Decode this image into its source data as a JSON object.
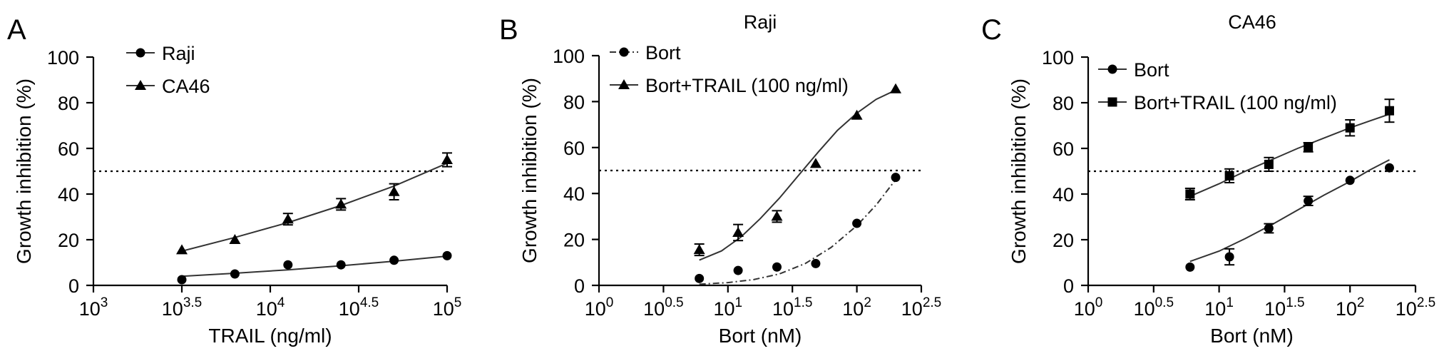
{
  "chart_data": [
    {
      "type": "scatter",
      "panel_label": "A",
      "title": "",
      "xlabel": "TRAIL (ng/ml)",
      "ylabel": "Growth inhibition (%)",
      "x_scale": "log10",
      "xlim_log10": [
        3,
        5
      ],
      "ylim": [
        0,
        100
      ],
      "x_tick_exponents": [
        "3",
        "3.5",
        "4",
        "4.5",
        "5"
      ],
      "x_tick_base": "10",
      "y_ticks": [
        "0",
        "20",
        "40",
        "60",
        "80",
        "100"
      ],
      "reference_line": 50,
      "legend_position": "top-left",
      "series": [
        {
          "name": "Raji",
          "marker": "circle",
          "line_style": "solid",
          "points": [
            {
              "x_log10": 3.5,
              "y": 2.5,
              "err": 0
            },
            {
              "x_log10": 3.8,
              "y": 5,
              "err": 0
            },
            {
              "x_log10": 4.1,
              "y": 9,
              "err": 0
            },
            {
              "x_log10": 4.4,
              "y": 9,
              "err": 0
            },
            {
              "x_log10": 4.7,
              "y": 11,
              "err": 0
            },
            {
              "x_log10": 5.0,
              "y": 13,
              "err": 0
            }
          ],
          "fit": [
            [
              3.5,
              4
            ],
            [
              3.8,
              5.3
            ],
            [
              4.1,
              6.8
            ],
            [
              4.4,
              8.6
            ],
            [
              4.7,
              10.6
            ],
            [
              5.0,
              12.8
            ]
          ]
        },
        {
          "name": "CA46",
          "marker": "triangle",
          "line_style": "solid",
          "points": [
            {
              "x_log10": 3.5,
              "y": 15.5,
              "err": 0
            },
            {
              "x_log10": 3.8,
              "y": 20,
              "err": 0
            },
            {
              "x_log10": 4.1,
              "y": 29,
              "err": 2.5
            },
            {
              "x_log10": 4.4,
              "y": 35.5,
              "err": 2.5
            },
            {
              "x_log10": 4.7,
              "y": 41,
              "err": 3.5
            },
            {
              "x_log10": 5.0,
              "y": 55,
              "err": 3
            }
          ],
          "fit": [
            [
              3.5,
              15
            ],
            [
              3.8,
              21
            ],
            [
              4.1,
              27.5
            ],
            [
              4.4,
              35
            ],
            [
              4.7,
              43.5
            ],
            [
              5.0,
              53.5
            ]
          ]
        }
      ]
    },
    {
      "type": "scatter",
      "panel_label": "B",
      "title": "Raji",
      "xlabel": "Bort (nM)",
      "ylabel": "Growth inhibition (%)",
      "x_scale": "log10",
      "xlim_log10": [
        0,
        2.5
      ],
      "ylim": [
        0,
        100
      ],
      "x_tick_exponents": [
        "0",
        "0.5",
        "1",
        "1.5",
        "2",
        "2.5"
      ],
      "x_tick_base": "10",
      "y_ticks": [
        "0",
        "20",
        "40",
        "60",
        "80",
        "100"
      ],
      "reference_line": 50,
      "legend_position": "top-left",
      "series": [
        {
          "name": "Bort",
          "marker": "circle",
          "line_style": "dash-dot",
          "points": [
            {
              "x_log10": 0.778,
              "y": 3,
              "err": 0
            },
            {
              "x_log10": 1.079,
              "y": 6.5,
              "err": 0
            },
            {
              "x_log10": 1.38,
              "y": 8,
              "err": 0
            },
            {
              "x_log10": 1.681,
              "y": 9.5,
              "err": 0
            },
            {
              "x_log10": 2.0,
              "y": 27,
              "err": 0
            },
            {
              "x_log10": 2.301,
              "y": 47,
              "err": 0
            }
          ],
          "fit": [
            [
              0.778,
              0.5
            ],
            [
              1.0,
              1.2
            ],
            [
              1.2,
              2.5
            ],
            [
              1.4,
              5
            ],
            [
              1.6,
              9.5
            ],
            [
              1.8,
              16.5
            ],
            [
              2.0,
              26
            ],
            [
              2.15,
              35
            ],
            [
              2.301,
              46
            ]
          ]
        },
        {
          "name": "Bort+TRAIL (100 ng/ml)",
          "marker": "triangle",
          "line_style": "solid",
          "points": [
            {
              "x_log10": 0.778,
              "y": 15.5,
              "err": 2.5
            },
            {
              "x_log10": 1.079,
              "y": 23,
              "err": 3.5
            },
            {
              "x_log10": 1.38,
              "y": 30,
              "err": 2.5
            },
            {
              "x_log10": 1.681,
              "y": 53,
              "err": 0
            },
            {
              "x_log10": 2.0,
              "y": 74,
              "err": 0
            },
            {
              "x_log10": 2.301,
              "y": 85.5,
              "err": 0
            }
          ],
          "fit": [
            [
              0.778,
              11
            ],
            [
              0.95,
              15
            ],
            [
              1.1,
              21
            ],
            [
              1.25,
              29
            ],
            [
              1.4,
              38
            ],
            [
              1.55,
              48
            ],
            [
              1.7,
              58
            ],
            [
              1.85,
              67.5
            ],
            [
              2.0,
              75
            ],
            [
              2.15,
              81
            ],
            [
              2.301,
              85
            ]
          ]
        }
      ]
    },
    {
      "type": "scatter",
      "panel_label": "C",
      "title": "CA46",
      "xlabel": "Bort (nM)",
      "ylabel": "Growth inhibition (%)",
      "x_scale": "log10",
      "xlim_log10": [
        0,
        2.5
      ],
      "ylim": [
        0,
        100
      ],
      "x_tick_exponents": [
        "0",
        "0.5",
        "1",
        "1.5",
        "2",
        "2.5"
      ],
      "x_tick_base": "10",
      "y_ticks": [
        "0",
        "20",
        "40",
        "60",
        "80",
        "100"
      ],
      "reference_line": 50,
      "legend_position": "top-left",
      "series": [
        {
          "name": "Bort",
          "marker": "circle",
          "line_style": "solid",
          "points": [
            {
              "x_log10": 0.778,
              "y": 8,
              "err": 0
            },
            {
              "x_log10": 1.079,
              "y": 12.5,
              "err": 3.5
            },
            {
              "x_log10": 1.38,
              "y": 25,
              "err": 2
            },
            {
              "x_log10": 1.681,
              "y": 37,
              "err": 2
            },
            {
              "x_log10": 2.0,
              "y": 46,
              "err": 0
            },
            {
              "x_log10": 2.301,
              "y": 51.5,
              "err": 0
            }
          ],
          "fit": [
            [
              0.778,
              10.5
            ],
            [
              1.0,
              15
            ],
            [
              1.2,
              20.5
            ],
            [
              1.4,
              26.5
            ],
            [
              1.6,
              33
            ],
            [
              1.8,
              39.5
            ],
            [
              2.0,
              45.5
            ],
            [
              2.15,
              50.5
            ],
            [
              2.301,
              55
            ]
          ]
        },
        {
          "name": "Bort+TRAIL (100 ng/ml)",
          "marker": "square",
          "line_style": "solid",
          "points": [
            {
              "x_log10": 0.778,
              "y": 40,
              "err": 2.5
            },
            {
              "x_log10": 1.079,
              "y": 48,
              "err": 3
            },
            {
              "x_log10": 1.38,
              "y": 53,
              "err": 3
            },
            {
              "x_log10": 1.681,
              "y": 60.5,
              "err": 2
            },
            {
              "x_log10": 2.0,
              "y": 69,
              "err": 3.5
            },
            {
              "x_log10": 2.301,
              "y": 76.5,
              "err": 5
            }
          ],
          "fit": [
            [
              0.778,
              39
            ],
            [
              1.0,
              44.5
            ],
            [
              1.2,
              50
            ],
            [
              1.4,
              55
            ],
            [
              1.6,
              60
            ],
            [
              1.8,
              64.5
            ],
            [
              2.0,
              69
            ],
            [
              2.15,
              72
            ],
            [
              2.301,
              75
            ]
          ]
        }
      ]
    }
  ]
}
